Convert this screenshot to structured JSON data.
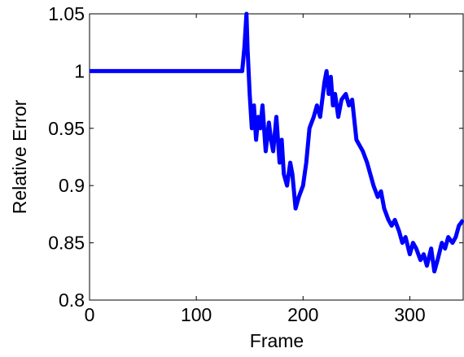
{
  "chart_data": {
    "type": "line",
    "xlabel": "Frame",
    "ylabel": "Relative Error",
    "x": [
      0,
      140,
      143,
      145,
      147,
      148,
      150,
      152,
      154,
      156,
      158,
      160,
      162,
      165,
      168,
      170,
      172,
      175,
      178,
      180,
      182,
      185,
      188,
      190,
      193,
      196,
      200,
      203,
      206,
      210,
      213,
      216,
      220,
      222,
      224,
      226,
      228,
      230,
      233,
      236,
      240,
      243,
      246,
      250,
      253,
      256,
      260,
      263,
      266,
      270,
      273,
      276,
      280,
      283,
      286,
      290,
      293,
      296,
      300,
      303,
      306,
      310,
      313,
      316,
      320,
      323,
      326,
      330,
      333,
      336,
      340,
      343,
      346,
      350
    ],
    "series": [
      {
        "color": "#0000ff",
        "values": [
          1,
          1,
          1,
          1.02,
          1.05,
          1.02,
          0.98,
          0.95,
          0.97,
          0.94,
          0.96,
          0.95,
          0.97,
          0.93,
          0.955,
          0.94,
          0.93,
          0.96,
          0.92,
          0.94,
          0.91,
          0.9,
          0.92,
          0.91,
          0.88,
          0.89,
          0.9,
          0.92,
          0.95,
          0.96,
          0.97,
          0.96,
          0.99,
          1.0,
          0.98,
          0.995,
          0.97,
          0.98,
          0.96,
          0.975,
          0.98,
          0.97,
          0.975,
          0.94,
          0.935,
          0.93,
          0.92,
          0.91,
          0.9,
          0.89,
          0.895,
          0.88,
          0.87,
          0.865,
          0.87,
          0.86,
          0.85,
          0.855,
          0.84,
          0.85,
          0.845,
          0.835,
          0.84,
          0.83,
          0.845,
          0.825,
          0.835,
          0.85,
          0.845,
          0.855,
          0.85,
          0.855,
          0.865,
          0.87
        ]
      }
    ],
    "xlim": [
      0,
      350
    ],
    "ylim": [
      0.8,
      1.05
    ],
    "xticks": [
      0,
      100,
      200,
      300
    ],
    "yticks": [
      0.8,
      0.85,
      0.9,
      0.95,
      1,
      1.05
    ]
  }
}
